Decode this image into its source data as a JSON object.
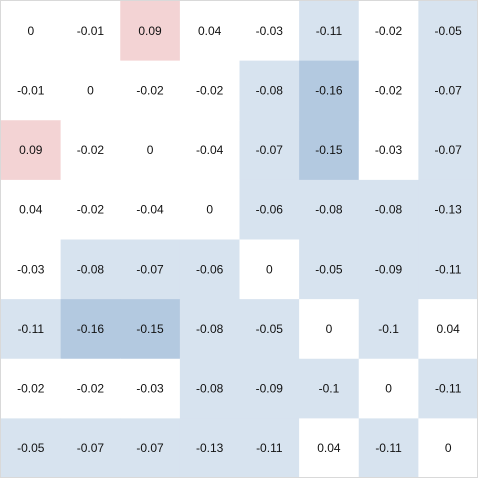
{
  "chart_data": {
    "type": "heatmap",
    "title": "",
    "xlabel": "",
    "ylabel": "",
    "x_tick_labels": [],
    "y_tick_labels": [],
    "colorbar": false,
    "color_scale": {
      "negative": "#4a7fb5",
      "zero": "#ffffff",
      "positive": "#d9747a",
      "vmin": -0.16,
      "vmax": 0.16
    },
    "matrix": [
      [
        0,
        -0.01,
        0.09,
        0.04,
        -0.03,
        -0.11,
        -0.02,
        -0.05
      ],
      [
        -0.01,
        0,
        -0.02,
        -0.02,
        -0.08,
        -0.16,
        -0.02,
        -0.07
      ],
      [
        0.09,
        -0.02,
        0,
        -0.04,
        -0.07,
        -0.15,
        -0.03,
        -0.07
      ],
      [
        0.04,
        -0.02,
        -0.04,
        0,
        -0.06,
        -0.08,
        -0.08,
        -0.13
      ],
      [
        -0.03,
        -0.08,
        -0.07,
        -0.06,
        0,
        -0.05,
        -0.09,
        -0.11
      ],
      [
        -0.11,
        -0.16,
        -0.15,
        -0.08,
        -0.05,
        0,
        -0.1,
        0.04
      ],
      [
        -0.02,
        -0.02,
        -0.03,
        -0.08,
        -0.09,
        -0.1,
        0,
        -0.11
      ],
      [
        -0.05,
        -0.07,
        -0.07,
        -0.13,
        -0.11,
        0.04,
        -0.11,
        0
      ]
    ]
  }
}
